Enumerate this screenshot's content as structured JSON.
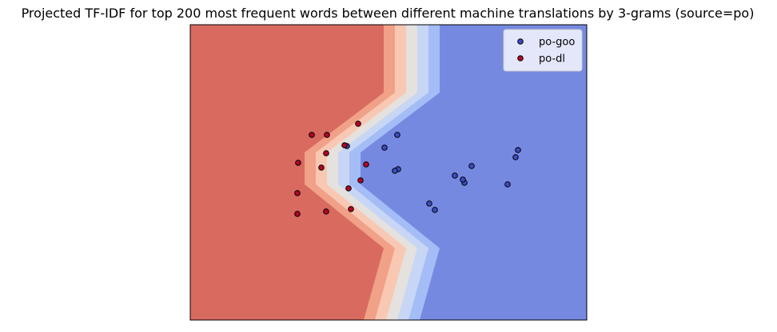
{
  "chart_data": {
    "type": "scatter",
    "title": "Projected TF-IDF for top 200 most frequent words between different machine translations by 3-grams (source=po)",
    "xlabel": "",
    "ylabel": "",
    "xlim": [
      0,
      496
    ],
    "ylim": [
      0,
      370
    ],
    "ticks_visible": false,
    "grid": false,
    "legend_position": "top-right",
    "background": {
      "kind": "decision-regions",
      "class_colors": {
        "po-dl": "#d96a60",
        "po-goo": "#7689e1"
      },
      "boundary_bands": [
        "#f0a187",
        "#f8c8b3",
        "#e4e1de",
        "#c7d6f5",
        "#a5bdf6"
      ],
      "boundary_vertex_x": [
        242,
        143,
        217,
        316
      ]
    },
    "series": [
      {
        "name": "po-goo",
        "color": "#3b4cc0",
        "points": [
          [
            259,
            232
          ],
          [
            243,
            216
          ],
          [
            196,
            218
          ],
          [
            260,
            189
          ],
          [
            256,
            187
          ],
          [
            331,
            181
          ],
          [
            343,
            172
          ],
          [
            352,
            193
          ],
          [
            341,
            176
          ],
          [
            397,
            170
          ],
          [
            407,
            204
          ],
          [
            410,
            213
          ],
          [
            299,
            146
          ],
          [
            306,
            138
          ]
        ]
      },
      {
        "name": "po-dl",
        "color": "#b40426",
        "points": [
          [
            152,
            232
          ],
          [
            171,
            232
          ],
          [
            210,
            246
          ],
          [
            193,
            219
          ],
          [
            170,
            209
          ],
          [
            135,
            197
          ],
          [
            164,
            191
          ],
          [
            220,
            195
          ],
          [
            213,
            175
          ],
          [
            198,
            165
          ],
          [
            134,
            159
          ],
          [
            134,
            133
          ],
          [
            170,
            136
          ],
          [
            201,
            139
          ]
        ]
      }
    ]
  }
}
